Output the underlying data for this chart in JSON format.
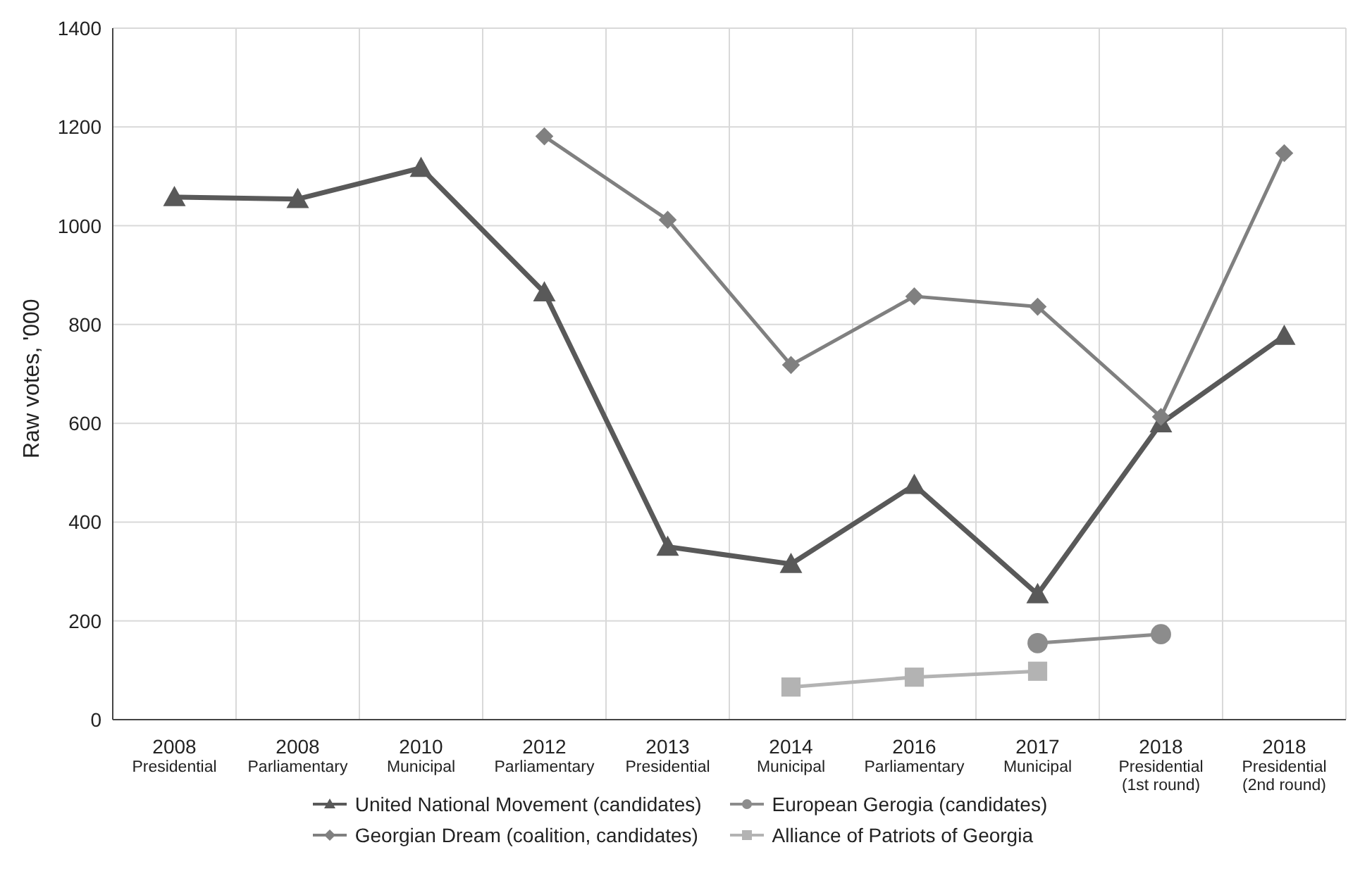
{
  "chart_data": {
    "type": "line",
    "ylabel": "Raw votes, '000",
    "categories": [
      "2008\nPresidential",
      "2008\nParliamentary",
      "2010\nMunicipal",
      "2012\nParliamentary",
      "2013\nPresidential",
      "2014\nMunicipal",
      "2016\nParliamentary",
      "2017\nMunicipal",
      "2018\nPresidential\n(1st round)",
      "2018\nPresidential\n(2nd round)"
    ],
    "series": [
      {
        "name": "United National Movement (candidates)",
        "color": "#595959",
        "marker": "triangle",
        "values": [
          1058,
          1054,
          1117,
          865,
          350,
          315,
          475,
          254,
          600,
          777
        ]
      },
      {
        "name": "European Gerogia (candidates)",
        "color": "#8c8c8c",
        "marker": "circle",
        "values": [
          null,
          null,
          null,
          null,
          null,
          null,
          null,
          155,
          173,
          null
        ]
      },
      {
        "name": "Georgian Dream (coalition, candidates)",
        "color": "#808080",
        "marker": "diamond",
        "values": [
          null,
          null,
          null,
          1181,
          1012,
          718,
          857,
          836,
          613,
          1147
        ]
      },
      {
        "name": "Alliance of Patriots of Georgia",
        "color": "#b3b3b3",
        "marker": "square",
        "values": [
          null,
          null,
          null,
          null,
          null,
          66,
          86,
          98,
          null,
          null
        ]
      }
    ],
    "ylim": [
      0,
      1400
    ],
    "yticks": [
      0,
      200,
      400,
      600,
      800,
      1000,
      1200,
      1400
    ],
    "grid": true,
    "legend": "bottom",
    "line_style": "solid"
  }
}
